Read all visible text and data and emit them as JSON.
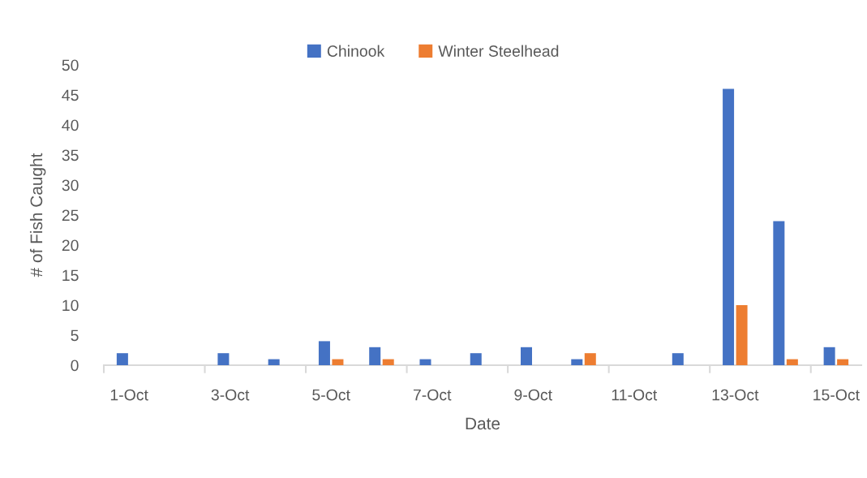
{
  "chart_data": {
    "type": "bar",
    "xlabel": "Date",
    "ylabel": "# of Fish Caught",
    "categories": [
      "1-Oct",
      null,
      "3-Oct",
      null,
      "5-Oct",
      null,
      "7-Oct",
      null,
      "9-Oct",
      null,
      "11-Oct",
      null,
      "13-Oct",
      null,
      "15-Oct"
    ],
    "series": [
      {
        "name": "Chinook",
        "color": "#4472c4",
        "values": [
          2,
          0,
          2,
          1,
          4,
          3,
          1,
          2,
          3,
          1,
          0,
          2,
          46,
          24,
          3
        ]
      },
      {
        "name": "Winter Steelhead",
        "color": "#ed7d31",
        "values": [
          0,
          0,
          0,
          0,
          1,
          1,
          0,
          0,
          0,
          2,
          0,
          0,
          10,
          1,
          1
        ]
      }
    ],
    "ylim": [
      0,
      50
    ],
    "yticks": [
      0,
      5,
      10,
      15,
      20,
      25,
      30,
      35,
      40,
      45,
      50
    ],
    "grid": false,
    "legend": "top"
  }
}
